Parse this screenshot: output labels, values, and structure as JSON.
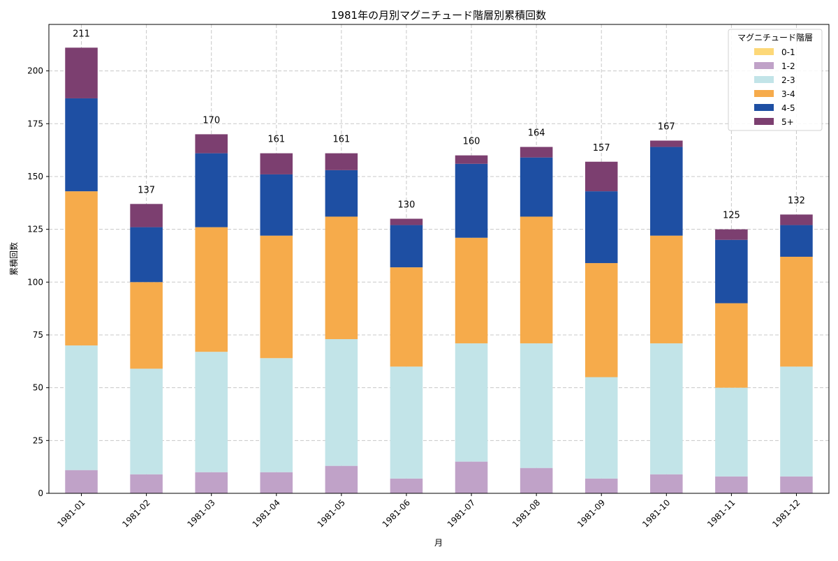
{
  "chart_data": {
    "type": "bar",
    "stacked": true,
    "title": "1981年の月別マグニチュード階層別累積回数",
    "xlabel": "月",
    "ylabel": "累積回数",
    "ylim": [
      0,
      222
    ],
    "yticks": [
      0,
      25,
      50,
      75,
      100,
      125,
      150,
      175,
      200
    ],
    "grid": true,
    "legend": {
      "title": "マグニチュード階層",
      "placement": "top-right"
    },
    "categories": [
      "1981-01",
      "1981-02",
      "1981-03",
      "1981-04",
      "1981-05",
      "1981-06",
      "1981-07",
      "1981-08",
      "1981-09",
      "1981-10",
      "1981-11",
      "1981-12"
    ],
    "series": [
      {
        "name": "0-1",
        "color": "#FDD878",
        "values": [
          0,
          0,
          0,
          0,
          0,
          0,
          0,
          0,
          0,
          0,
          0,
          0
        ]
      },
      {
        "name": "1-2",
        "color": "#C0A2C8",
        "values": [
          11,
          9,
          10,
          10,
          13,
          7,
          15,
          12,
          7,
          9,
          8,
          8
        ]
      },
      {
        "name": "2-3",
        "color": "#C2E4E8",
        "values": [
          59,
          50,
          57,
          54,
          60,
          53,
          56,
          59,
          48,
          62,
          42,
          52
        ]
      },
      {
        "name": "3-4",
        "color": "#F6AB4B",
        "values": [
          73,
          41,
          59,
          58,
          58,
          47,
          50,
          60,
          54,
          51,
          40,
          52
        ]
      },
      {
        "name": "4-5",
        "color": "#1E4FA3",
        "values": [
          44,
          26,
          35,
          29,
          22,
          20,
          35,
          28,
          34,
          42,
          30,
          15
        ]
      },
      {
        "name": "5+",
        "color": "#7C3F70",
        "values": [
          24,
          11,
          9,
          10,
          8,
          3,
          4,
          5,
          14,
          3,
          5,
          5
        ]
      }
    ],
    "totals": [
      211,
      137,
      170,
      161,
      161,
      130,
      160,
      164,
      157,
      167,
      125,
      132
    ]
  }
}
